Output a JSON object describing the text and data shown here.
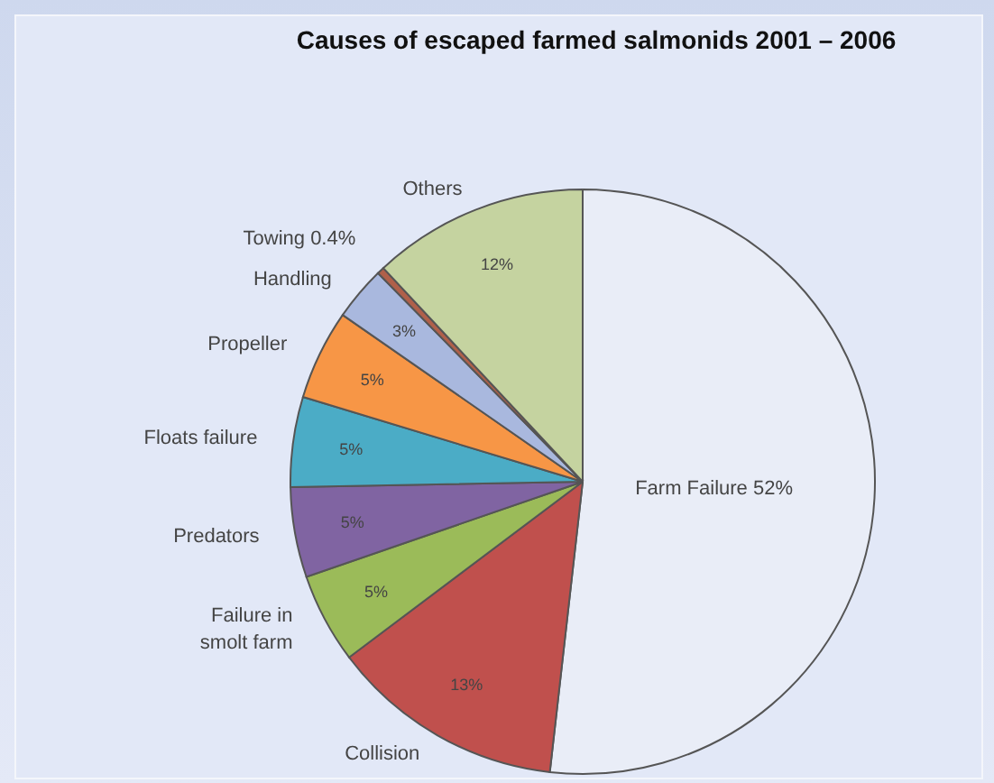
{
  "chart_data": {
    "type": "pie",
    "title": "Causes of escaped farmed salmonids 2001 – 2006",
    "categories": [
      "Farm Failure",
      "Collision",
      "Failure in smolt farm",
      "Predators",
      "Floats failure",
      "Propeller",
      "Handling",
      "Towing",
      "Others"
    ],
    "values": [
      52,
      13,
      5,
      5,
      5,
      5,
      3,
      0.4,
      12
    ],
    "value_labels": [
      "52%",
      "13%",
      "5%",
      "5%",
      "5%",
      "5%",
      "3%",
      "0.4%",
      "12%"
    ],
    "colors": [
      "#e9edf7",
      "#c0504d",
      "#9bbb59",
      "#8064a2",
      "#4bacc6",
      "#f79646",
      "#a9b8de",
      "#b0604a",
      "#c5d3a0"
    ]
  }
}
